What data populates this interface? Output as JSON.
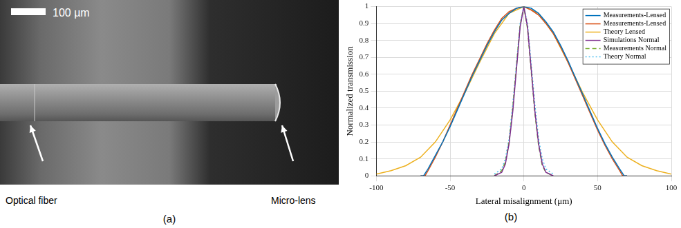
{
  "image_panel": {
    "scale_bar": "100 µm",
    "labels": [
      "Optical fiber",
      "Micro-lens"
    ],
    "caption": "(a)"
  },
  "chart_caption": "(b)",
  "chart_data": {
    "type": "line",
    "x_label": "Lateral misalignment (μm)",
    "y_label": "Normalized transmission",
    "xlim": [
      -100,
      100
    ],
    "xticks": [
      -100,
      -50,
      0,
      50,
      100
    ],
    "ylim": [
      0,
      1
    ],
    "yticks": [
      0,
      0.1,
      0.2,
      0.3,
      0.4,
      0.5,
      0.6,
      0.7,
      0.8,
      0.9,
      1
    ],
    "grid": true,
    "legend": "northeast",
    "series": [
      {
        "name": "Measurements-Lensed",
        "color": "#0072bd",
        "line_style": "solid",
        "marker": "none",
        "x": [
          -70,
          -68,
          -65,
          -60,
          -55,
          -50,
          -45,
          -40,
          -35,
          -30,
          -25,
          -20,
          -15,
          -10,
          -5,
          0,
          5,
          10,
          15,
          20,
          25,
          30,
          35,
          40,
          45,
          50,
          55,
          60,
          65,
          68,
          70
        ],
        "values": [
          0,
          0,
          0.04,
          0.12,
          0.2,
          0.29,
          0.39,
          0.49,
          0.59,
          0.68,
          0.77,
          0.85,
          0.92,
          0.96,
          0.99,
          1.0,
          0.99,
          0.96,
          0.91,
          0.85,
          0.77,
          0.68,
          0.58,
          0.48,
          0.38,
          0.28,
          0.19,
          0.11,
          0.04,
          0,
          0
        ]
      },
      {
        "name": "Measurements-Lensed",
        "color": "#d95319",
        "line_style": "solid",
        "marker": "none",
        "x": [
          -70,
          -67,
          -65,
          -60,
          -55,
          -50,
          -45,
          -40,
          -35,
          -30,
          -25,
          -20,
          -15,
          -10,
          -5,
          0,
          5,
          10,
          15,
          20,
          25,
          30,
          35,
          40,
          45,
          50,
          55,
          60,
          65,
          67,
          70
        ],
        "values": [
          0,
          0,
          0.03,
          0.11,
          0.2,
          0.3,
          0.4,
          0.5,
          0.6,
          0.69,
          0.78,
          0.86,
          0.93,
          0.97,
          0.99,
          1.0,
          0.98,
          0.95,
          0.9,
          0.84,
          0.76,
          0.67,
          0.57,
          0.47,
          0.37,
          0.27,
          0.18,
          0.1,
          0.03,
          0,
          0
        ]
      },
      {
        "name": "Theory Lensed",
        "color": "#edb120",
        "line_style": "solid",
        "marker": "none",
        "x": [
          -100,
          -90,
          -80,
          -70,
          -60,
          -50,
          -40,
          -30,
          -20,
          -10,
          0,
          10,
          20,
          30,
          40,
          50,
          60,
          70,
          80,
          90,
          100
        ],
        "values": [
          0.01,
          0.03,
          0.06,
          0.11,
          0.2,
          0.33,
          0.49,
          0.67,
          0.84,
          0.96,
          1.0,
          0.96,
          0.84,
          0.67,
          0.49,
          0.33,
          0.2,
          0.11,
          0.06,
          0.03,
          0.01
        ]
      },
      {
        "name": "Simulations Normal",
        "color": "#7e2f8e",
        "line_style": "solid",
        "marker": "none",
        "x": [
          -20,
          -15,
          -12.5,
          -10,
          -7.5,
          -5,
          -2.5,
          0,
          2.5,
          5,
          7.5,
          10,
          12.5,
          15,
          20
        ],
        "values": [
          0,
          0.02,
          0.07,
          0.19,
          0.38,
          0.63,
          0.88,
          1.0,
          0.88,
          0.63,
          0.38,
          0.19,
          0.07,
          0.02,
          0
        ]
      },
      {
        "name": "Measurements Normal",
        "color": "#77ac30",
        "line_style": "dashed",
        "marker": "none",
        "x": [
          -20,
          -15,
          -12.5,
          -10,
          -7.5,
          -5,
          -2.5,
          0,
          2.5,
          5,
          7.5,
          10,
          12.5,
          15,
          20
        ],
        "values": [
          0,
          0.03,
          0.08,
          0.2,
          0.4,
          0.65,
          0.89,
          1.0,
          0.87,
          0.62,
          0.37,
          0.18,
          0.06,
          0.02,
          0
        ]
      },
      {
        "name": "Theory Normal",
        "color": "#4dbeee",
        "line_style": "dotted",
        "marker": "none",
        "x": [
          -20,
          -15,
          -12.5,
          -10,
          -7.5,
          -5,
          -2.5,
          0,
          2.5,
          5,
          7.5,
          10,
          12.5,
          15,
          20
        ],
        "values": [
          0.01,
          0.04,
          0.1,
          0.22,
          0.42,
          0.66,
          0.9,
          1.0,
          0.9,
          0.66,
          0.42,
          0.22,
          0.1,
          0.04,
          0.01
        ]
      }
    ]
  }
}
